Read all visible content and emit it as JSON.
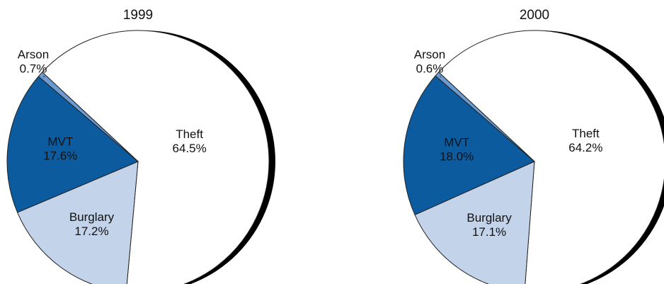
{
  "chart_data": [
    {
      "type": "pie",
      "title": "1999",
      "categories": [
        "Theft",
        "Burglary",
        "MVT",
        "Arson"
      ],
      "values": [
        64.5,
        17.2,
        17.6,
        0.7
      ],
      "value_labels": [
        "64.5%",
        "17.2%",
        "17.6%",
        "0.7%"
      ],
      "colors": [
        "#ffffff",
        "#c3d3ea",
        "#0b5b9e",
        "#6b9bd1"
      ]
    },
    {
      "type": "pie",
      "title": "2000",
      "categories": [
        "Theft",
        "Burglary",
        "MVT",
        "Arson"
      ],
      "values": [
        64.2,
        17.1,
        18.0,
        0.6
      ],
      "value_labels": [
        "64.2%",
        "17.1%",
        "18.0%",
        "0.6%"
      ],
      "colors": [
        "#ffffff",
        "#c3d3ea",
        "#0b5b9e",
        "#6b9bd1"
      ]
    }
  ]
}
